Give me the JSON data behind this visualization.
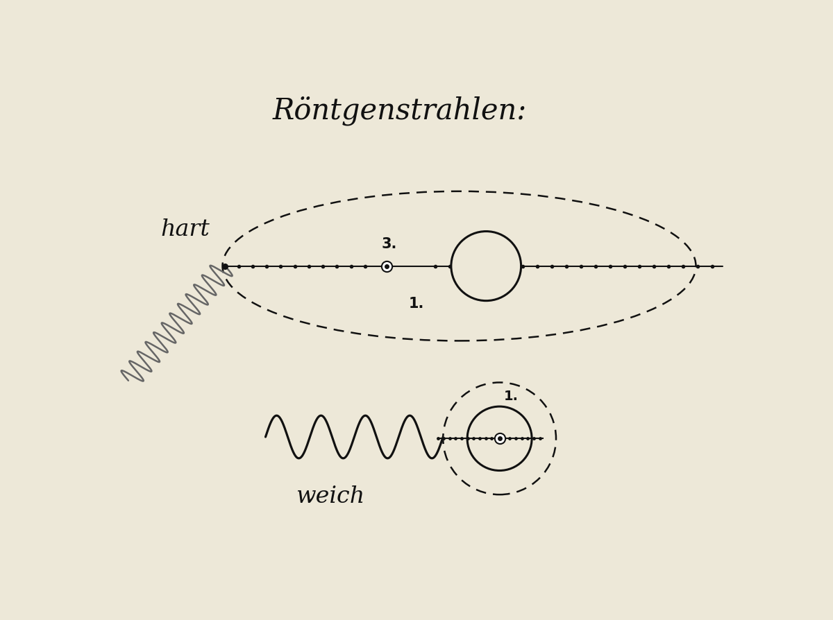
{
  "bg_color": "#ede8d8",
  "title": "Röntgenstrahlen:",
  "title_fontsize": 30,
  "line_color": "#111111",
  "dot_color": "#111111",
  "hart_label": "hart",
  "weich_label": "weich",
  "spring_color": "#888888"
}
